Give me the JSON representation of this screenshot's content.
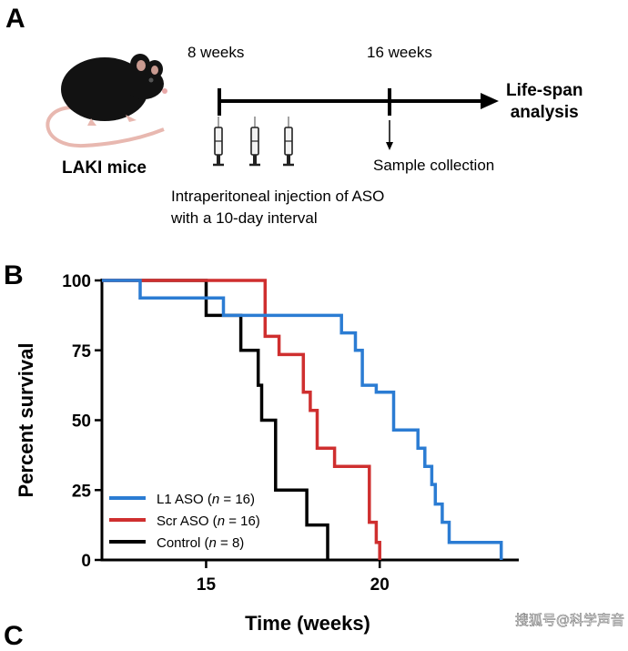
{
  "panel_a": {
    "letter": "A",
    "mice_label": "LAKI mice",
    "week_start": "8 weeks",
    "week_end": "16 weeks",
    "endpoint": "Life-span\nanalysis",
    "sample": "Sample collection",
    "injection": "Intraperitoneal injection of ASO\nwith a 10-day interval",
    "icons": [
      "mouse-icon",
      "syringe-icon",
      "arrow-down-icon"
    ]
  },
  "panel_b": {
    "letter": "B"
  },
  "panel_c": {
    "letter": "C"
  },
  "watermark": "搜狐号@科学声音",
  "chart_data": {
    "type": "line",
    "step": true,
    "title": "",
    "xlabel": "Time (weeks)",
    "ylabel": "Percent survival",
    "xlim": [
      12,
      23.9
    ],
    "ylim": [
      0,
      100
    ],
    "xticks": [
      15,
      20
    ],
    "yticks": [
      0,
      25,
      50,
      75,
      100
    ],
    "grid": false,
    "legend_position": "bottom-left",
    "series": [
      {
        "name": "L1 ASO",
        "n_label": "n",
        "n_value": "16",
        "color": "#2b7cd3",
        "x": [
          12,
          13.1,
          13.1,
          15.5,
          15.5,
          18.9,
          18.9,
          19.3,
          19.3,
          19.5,
          19.5,
          19.9,
          19.9,
          20.4,
          20.4,
          21.1,
          21.1,
          21.3,
          21.3,
          21.5,
          21.5,
          21.6,
          21.6,
          21.8,
          21.8,
          22.0,
          22.0,
          22.2,
          22.2,
          23.5,
          23.5
        ],
        "y": [
          100,
          100,
          93.75,
          93.75,
          87.5,
          87.5,
          81.25,
          81.25,
          75,
          75,
          62.5,
          62.5,
          60,
          60,
          46.5,
          46.5,
          40,
          40,
          33.5,
          33.5,
          27,
          27,
          20,
          20,
          13.5,
          13.5,
          6.25,
          6.25,
          6.25,
          6.25,
          0
        ]
      },
      {
        "name": "Scr ASO",
        "n_label": "n",
        "n_value": "16",
        "color": "#cf2f2f",
        "x": [
          12,
          16.7,
          16.7,
          17.1,
          17.1,
          17.8,
          17.8,
          18.0,
          18.0,
          18.2,
          18.2,
          18.7,
          18.7,
          19.7,
          19.7,
          19.9,
          19.9,
          20.0,
          20.0
        ],
        "y": [
          100,
          100,
          80,
          80,
          73.5,
          73.5,
          60,
          60,
          53.5,
          53.5,
          40,
          40,
          33.5,
          33.5,
          13.5,
          13.5,
          6.25,
          6.25,
          0
        ]
      },
      {
        "name": "Control",
        "n_label": "n",
        "n_value": "8",
        "color": "#000000",
        "x": [
          12,
          15.0,
          15.0,
          15.5,
          15.5,
          16.0,
          16.0,
          16.5,
          16.5,
          16.6,
          16.6,
          16.7,
          16.7,
          17.0,
          17.0,
          17.9,
          17.9,
          18.5,
          18.5
        ],
        "y": [
          100,
          100,
          87.5,
          87.5,
          87.5,
          87.5,
          75,
          75,
          62.5,
          62.5,
          50,
          50,
          50,
          50,
          25,
          25,
          12.5,
          12.5,
          0
        ]
      }
    ]
  }
}
